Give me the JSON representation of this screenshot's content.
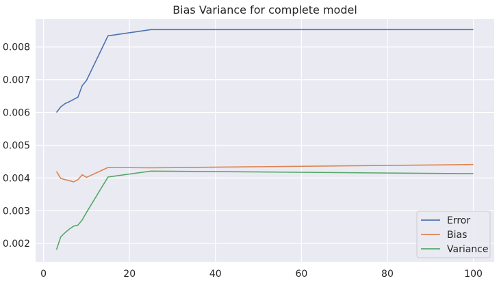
{
  "chart_data": {
    "type": "line",
    "title": "Bias Variance for complete model",
    "xlabel": "",
    "ylabel": "",
    "xlim": [
      -1.85,
      104.85
    ],
    "ylim": [
      0.00144,
      0.00885
    ],
    "x_ticks": [
      0,
      20,
      40,
      60,
      80,
      100
    ],
    "y_ticks": [
      0.002,
      0.003,
      0.004,
      0.005,
      0.006,
      0.007,
      0.008
    ],
    "y_tick_labels": [
      "0.002",
      "0.003",
      "0.004",
      "0.005",
      "0.006",
      "0.007",
      "0.008"
    ],
    "grid": true,
    "legend_position": "lower right",
    "x": [
      3,
      4,
      5,
      6,
      7,
      8,
      9,
      10,
      15,
      25,
      100
    ],
    "series": [
      {
        "name": "Error",
        "color": "#4c72b0",
        "values": [
          0.006,
          0.00617,
          0.00627,
          0.00633,
          0.0064,
          0.00647,
          0.00682,
          0.00698,
          0.00834,
          0.00853,
          0.00853
        ]
      },
      {
        "name": "Bias",
        "color": "#dd8452",
        "values": [
          0.0042,
          0.00399,
          0.00395,
          0.00392,
          0.00388,
          0.00395,
          0.0041,
          0.00402,
          0.00432,
          0.00431,
          0.00441
        ]
      },
      {
        "name": "Variance",
        "color": "#55a868",
        "values": [
          0.00181,
          0.0022,
          0.00233,
          0.00244,
          0.00253,
          0.00256,
          0.00272,
          0.00295,
          0.00403,
          0.00421,
          0.00413
        ]
      }
    ]
  }
}
